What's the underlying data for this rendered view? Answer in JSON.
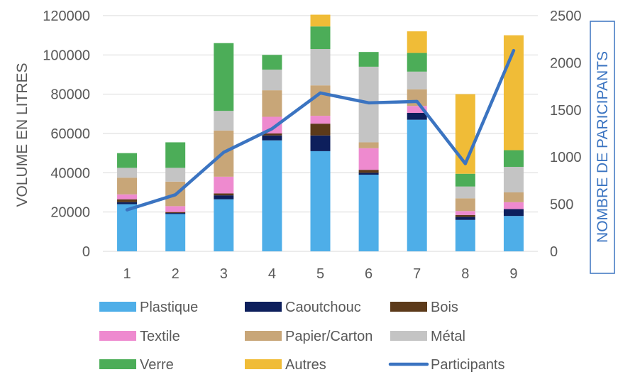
{
  "chart_data": {
    "type": "bar",
    "stacked": true,
    "categories": [
      "1",
      "2",
      "3",
      "4",
      "5",
      "6",
      "7",
      "8",
      "9"
    ],
    "ylabel": "VOLUME EN LITRES",
    "ylim": [
      0,
      120000
    ],
    "yticks": [
      "0",
      "20000",
      "40000",
      "60000",
      "80000",
      "100000",
      "120000"
    ],
    "y2label": "NOMBRE DE PARICIPANTS",
    "y2lim": [
      0,
      2500
    ],
    "y2ticks": [
      "0",
      "500",
      "1000",
      "1500",
      "2000",
      "2500"
    ],
    "grid": true,
    "legend_position": "bottom",
    "series": [
      {
        "name": "Plastique",
        "color": "#4EAEE8",
        "values": [
          24000,
          19000,
          26500,
          56500,
          51000,
          39000,
          67000,
          16000,
          18000
        ]
      },
      {
        "name": "Caoutchouc",
        "color": "#0D1F5C",
        "values": [
          1000,
          500,
          2000,
          2500,
          8000,
          1000,
          3500,
          1500,
          3500
        ]
      },
      {
        "name": "Bois",
        "color": "#5C3A1A",
        "values": [
          1500,
          500,
          1000,
          1000,
          6000,
          1500,
          0,
          1000,
          0
        ]
      },
      {
        "name": "Textile",
        "color": "#EE8ACF",
        "values": [
          2500,
          3000,
          8500,
          8500,
          4000,
          11000,
          3500,
          2000,
          3500
        ]
      },
      {
        "name": "Papier/Carton",
        "color": "#C8A678",
        "values": [
          8500,
          12500,
          23500,
          13500,
          15500,
          3000,
          8500,
          6500,
          5000
        ]
      },
      {
        "name": "Métal",
        "color": "#C4C4C4",
        "values": [
          5000,
          7000,
          10000,
          10500,
          18500,
          38500,
          9000,
          6000,
          13000
        ]
      },
      {
        "name": "Verre",
        "color": "#4CAD58",
        "values": [
          7500,
          13000,
          34500,
          7500,
          11500,
          7500,
          9500,
          6500,
          8500
        ]
      },
      {
        "name": "Autres",
        "color": "#F0BC37",
        "values": [
          0,
          0,
          0,
          0,
          6000,
          0,
          11000,
          40500,
          58500
        ]
      }
    ],
    "line_series": {
      "name": "Participants",
      "color": "#3B74C1",
      "axis": "right",
      "values": [
        440,
        600,
        1050,
        1300,
        1680,
        1575,
        1590,
        930,
        2130
      ]
    },
    "legend": [
      {
        "name": "Plastique",
        "kind": "bar"
      },
      {
        "name": "Caoutchouc",
        "kind": "bar"
      },
      {
        "name": "Bois",
        "kind": "bar"
      },
      {
        "name": "Textile",
        "kind": "bar"
      },
      {
        "name": "Papier/Carton",
        "kind": "bar"
      },
      {
        "name": "Métal",
        "kind": "bar"
      },
      {
        "name": "Verre",
        "kind": "bar"
      },
      {
        "name": "Autres",
        "kind": "bar"
      },
      {
        "name": "Participants",
        "kind": "line"
      }
    ],
    "colors": {
      "axis_text": "#595959",
      "gridline": "#D9D9D9",
      "right_label_border": "#3B74C1"
    }
  }
}
